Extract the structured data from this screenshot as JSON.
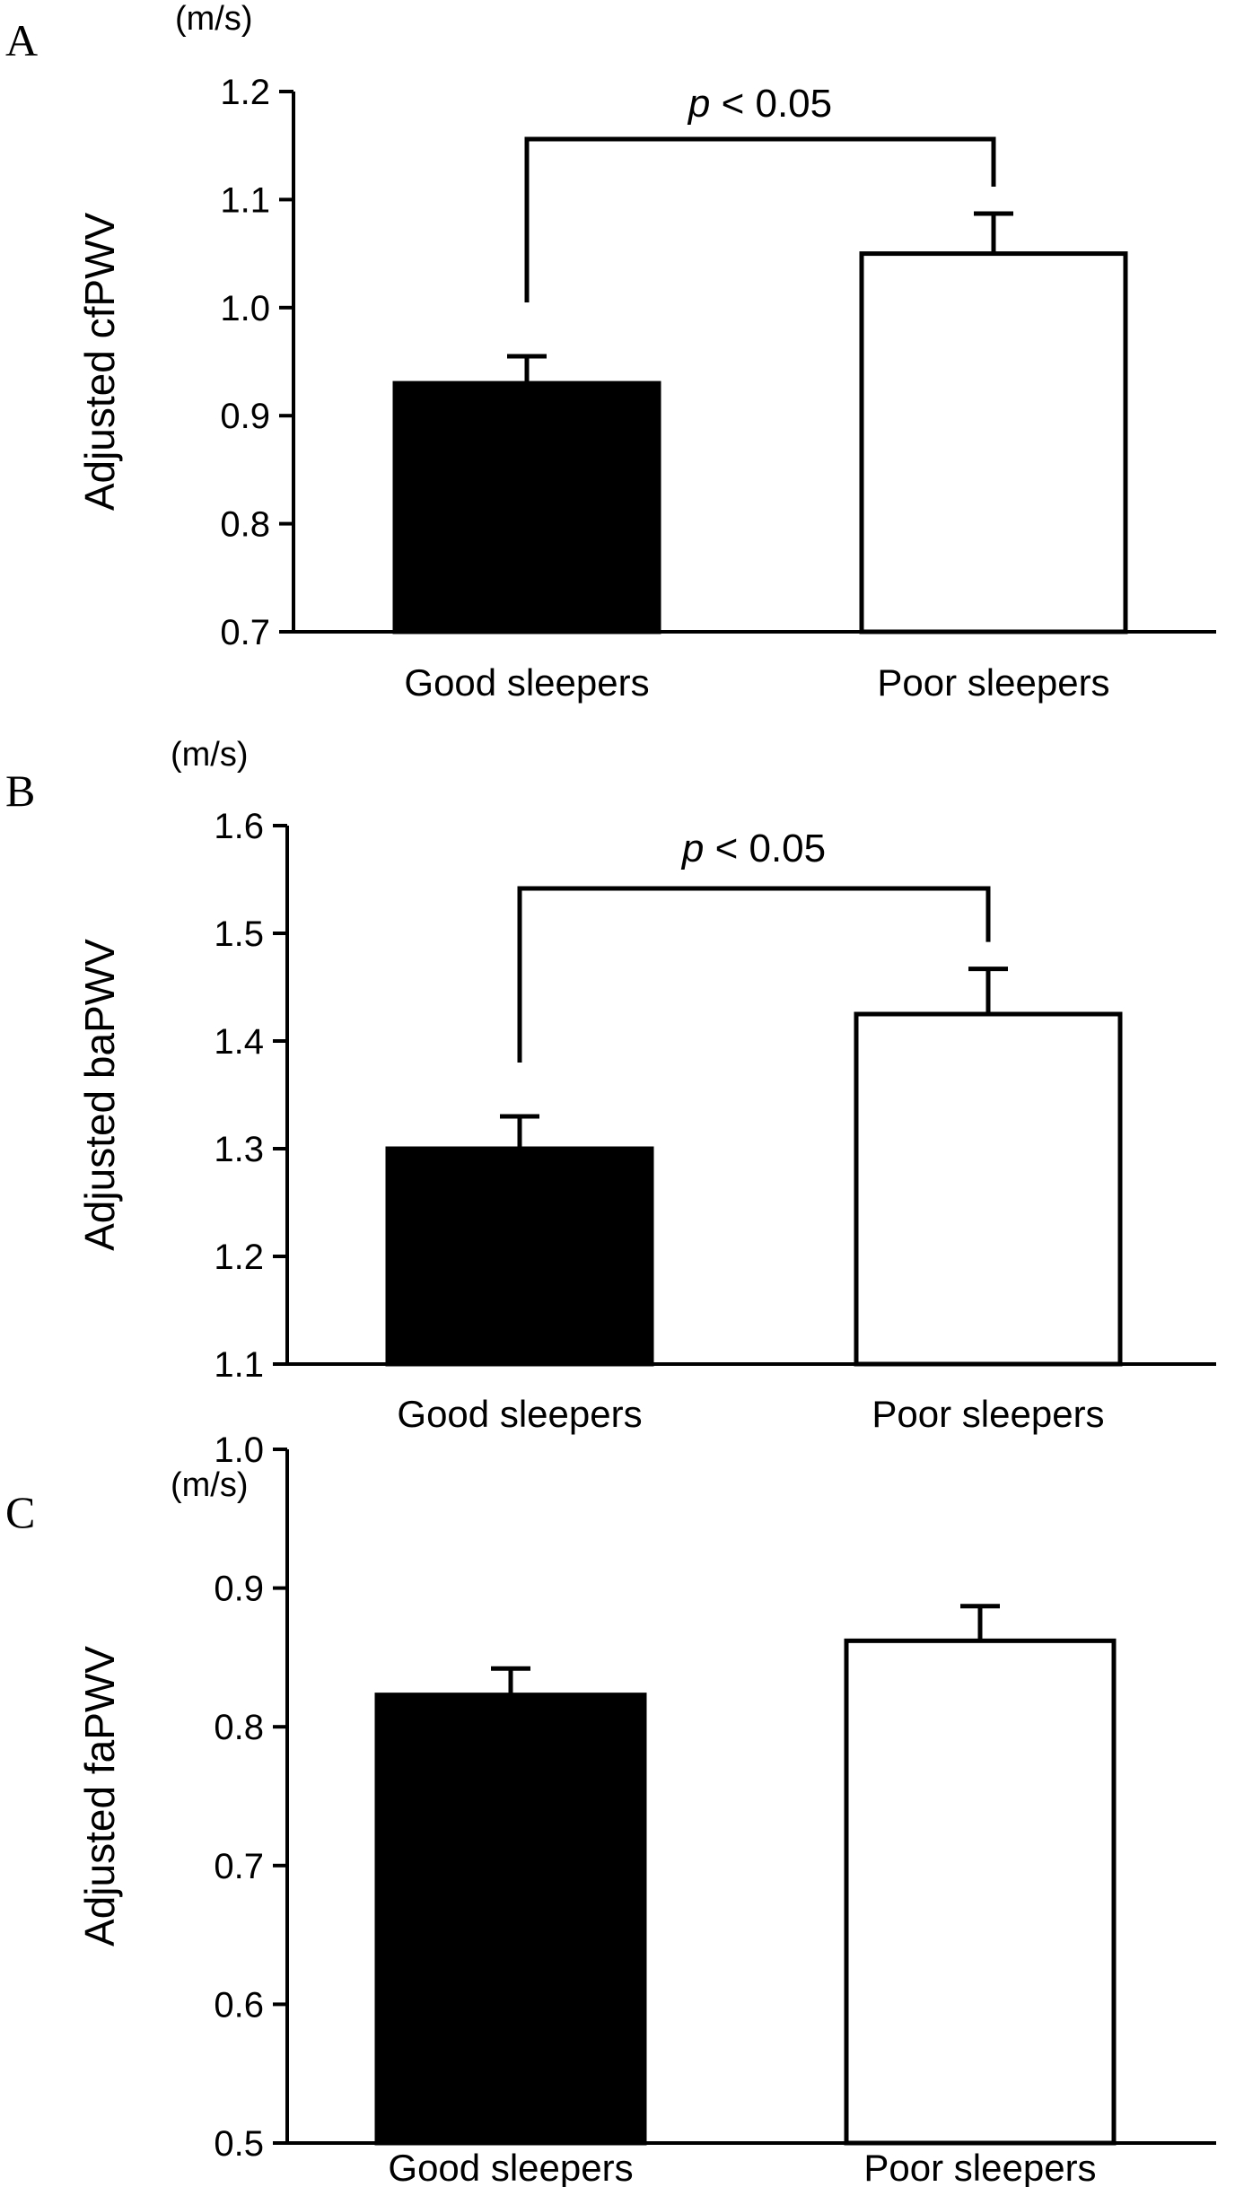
{
  "chart_data": [
    {
      "panel": "A",
      "type": "bar",
      "unit": "(m/s)",
      "ylabel": "Adjusted cfPWV",
      "categories": [
        "Good sleepers",
        "Poor sleepers"
      ],
      "values": [
        0.93,
        1.05
      ],
      "errors": [
        0.025,
        0.037
      ],
      "bar_colors": [
        "#000000",
        "#ffffff"
      ],
      "ylim": [
        0.7,
        1.2
      ],
      "yticks": [
        "0.7",
        "0.8",
        "0.9",
        "1.0",
        "1.1",
        "1.2"
      ],
      "significance": {
        "pre": "p",
        "post": " < 0.05"
      }
    },
    {
      "panel": "B",
      "type": "bar",
      "unit": "(m/s)",
      "ylabel": "Adjusted baPWV",
      "categories": [
        "Good sleepers",
        "Poor sleepers"
      ],
      "values": [
        1.3,
        1.425
      ],
      "errors": [
        0.03,
        0.042
      ],
      "bar_colors": [
        "#000000",
        "#ffffff"
      ],
      "ylim": [
        1.1,
        1.6
      ],
      "yticks": [
        "1.1",
        "1.2",
        "1.3",
        "1.4",
        "1.5",
        "1.6"
      ],
      "significance": {
        "pre": "p",
        "post": " < 0.05"
      }
    },
    {
      "panel": "C",
      "type": "bar",
      "unit": "(m/s)",
      "ylabel": "Adjusted faPWV",
      "categories": [
        "Good sleepers",
        "Poor sleepers"
      ],
      "values": [
        0.823,
        0.862
      ],
      "errors": [
        0.019,
        0.025
      ],
      "bar_colors": [
        "#000000",
        "#ffffff"
      ],
      "ylim": [
        0.5,
        1.0
      ],
      "yticks": [
        "0.5",
        "0.6",
        "0.7",
        "0.8",
        "0.9",
        "1.0"
      ],
      "significance": null
    }
  ]
}
